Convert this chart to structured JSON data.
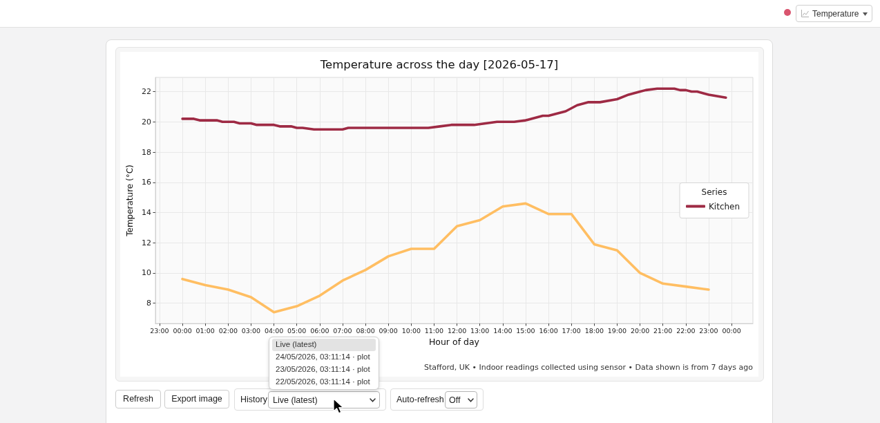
{
  "chart_data": {
    "type": "line",
    "title": "Temperature across the day [2026-05-17]",
    "xlabel": "Hour of day",
    "ylabel": "Temperature (°C)",
    "legend_title": "Series",
    "legend": "right",
    "grid": true,
    "xlim": [
      "2026-05-16T22:49",
      "2026-05-18T00:56"
    ],
    "xticks": [
      {
        "value": "2026-05-16T23:00",
        "label": "23:00"
      },
      {
        "value": "2026-05-17T00:00",
        "label": "00:00"
      },
      {
        "value": "2026-05-17T01:00",
        "label": "01:00"
      },
      {
        "value": "2026-05-17T02:00",
        "label": "02:00"
      },
      {
        "value": "2026-05-17T03:00",
        "label": "03:00"
      },
      {
        "value": "2026-05-17T04:00",
        "label": "04:00"
      },
      {
        "value": "2026-05-17T05:00",
        "label": "05:00"
      },
      {
        "value": "2026-05-17T06:00",
        "label": "06:00"
      },
      {
        "value": "2026-05-17T07:00",
        "label": "07:00"
      },
      {
        "value": "2026-05-17T08:00",
        "label": "08:00"
      },
      {
        "value": "2026-05-17T09:00",
        "label": "09:00"
      },
      {
        "value": "2026-05-17T10:00",
        "label": "10:00"
      },
      {
        "value": "2026-05-17T11:00",
        "label": "11:00"
      },
      {
        "value": "2026-05-17T12:00",
        "label": "12:00"
      },
      {
        "value": "2026-05-17T13:00",
        "label": "13:00"
      },
      {
        "value": "2026-05-17T14:00",
        "label": "14:00"
      },
      {
        "value": "2026-05-17T15:00",
        "label": "15:00"
      },
      {
        "value": "2026-05-17T16:00",
        "label": "16:00"
      },
      {
        "value": "2026-05-17T17:00",
        "label": "17:00"
      },
      {
        "value": "2026-05-17T18:00",
        "label": "18:00"
      },
      {
        "value": "2026-05-17T19:00",
        "label": "19:00"
      },
      {
        "value": "2026-05-17T20:00",
        "label": "20:00"
      },
      {
        "value": "2026-05-17T21:00",
        "label": "21:00"
      },
      {
        "value": "2026-05-17T22:00",
        "label": "22:00"
      },
      {
        "value": "2026-05-17T23:00",
        "label": "23:00"
      },
      {
        "value": "2026-05-18T00:00",
        "label": "00:00"
      }
    ],
    "ylim": [
      6.66,
      22.94
    ],
    "yticks": [
      8,
      10,
      12,
      14,
      16,
      18,
      20,
      22
    ],
    "series": [
      {
        "name": "Kitchen",
        "color": "#9e2a44",
        "x": [
          "2026-05-17T00:00",
          "2026-05-17T00:30",
          "2026-05-17T00:45",
          "2026-05-17T01:30",
          "2026-05-17T01:45",
          "2026-05-17T02:15",
          "2026-05-17T02:30",
          "2026-05-17T03:00",
          "2026-05-17T03:15",
          "2026-05-17T04:00",
          "2026-05-17T04:15",
          "2026-05-17T04:45",
          "2026-05-17T05:00",
          "2026-05-17T05:15",
          "2026-05-17T05:45",
          "2026-05-17T07:00",
          "2026-05-17T07:15",
          "2026-05-17T10:45",
          "2026-05-17T11:15",
          "2026-05-17T11:45",
          "2026-05-17T12:45",
          "2026-05-17T13:15",
          "2026-05-17T13:45",
          "2026-05-17T14:30",
          "2026-05-17T15:00",
          "2026-05-17T15:45",
          "2026-05-17T16:00",
          "2026-05-17T16:45",
          "2026-05-17T17:15",
          "2026-05-17T17:45",
          "2026-05-17T18:15",
          "2026-05-17T19:00",
          "2026-05-17T19:30",
          "2026-05-17T20:00",
          "2026-05-17T20:15",
          "2026-05-17T20:45",
          "2026-05-17T21:30",
          "2026-05-17T21:45",
          "2026-05-17T22:00",
          "2026-05-17T22:15",
          "2026-05-17T22:30",
          "2026-05-17T23:00",
          "2026-05-17T23:45"
        ],
        "values": [
          20.2,
          20.2,
          20.1,
          20.1,
          20.0,
          20.0,
          19.9,
          19.9,
          19.8,
          19.8,
          19.7,
          19.7,
          19.6,
          19.6,
          19.5,
          19.5,
          19.6,
          19.6,
          19.7,
          19.8,
          19.8,
          19.9,
          20.0,
          20.0,
          20.1,
          20.4,
          20.4,
          20.7,
          21.1,
          21.3,
          21.3,
          21.5,
          21.8,
          22.0,
          22.1,
          22.2,
          22.2,
          22.1,
          22.1,
          22.0,
          22.0,
          21.8,
          21.6
        ]
      },
      {
        "color": "#ffbe62",
        "x": [
          "2026-05-17T00:00",
          "2026-05-17T01:00",
          "2026-05-17T02:00",
          "2026-05-17T03:00",
          "2026-05-17T04:00",
          "2026-05-17T05:00",
          "2026-05-17T06:00",
          "2026-05-17T07:00",
          "2026-05-17T08:00",
          "2026-05-17T09:00",
          "2026-05-17T10:00",
          "2026-05-17T11:00",
          "2026-05-17T12:00",
          "2026-05-17T13:00",
          "2026-05-17T14:00",
          "2026-05-17T15:00",
          "2026-05-17T16:00",
          "2026-05-17T17:00",
          "2026-05-17T18:00",
          "2026-05-17T19:00",
          "2026-05-17T20:00",
          "2026-05-17T21:00",
          "2026-05-17T22:00",
          "2026-05-17T23:00"
        ],
        "values": [
          9.6,
          9.2,
          8.9,
          8.4,
          7.4,
          7.8,
          8.5,
          9.5,
          10.2,
          11.1,
          11.6,
          11.6,
          13.1,
          13.5,
          14.4,
          14.6,
          13.9,
          13.9,
          11.9,
          11.5,
          10.0,
          9.3,
          9.1,
          8.9
        ]
      }
    ],
    "annotations": [
      "Stafford, UK • Indoor readings collected using sensor • Data shown is from 7 days ago",
      "Temperature",
      "Refresh",
      "Export image",
      "History",
      "Live (latest)",
      "Auto-refresh",
      "Off",
      "Live (latest)",
      "24/05/2026, 03:11:14 · plot",
      "23/05/2026, 03:11:14 · plot",
      "22/05/2026, 03:11:14 · plot"
    ]
  }
}
